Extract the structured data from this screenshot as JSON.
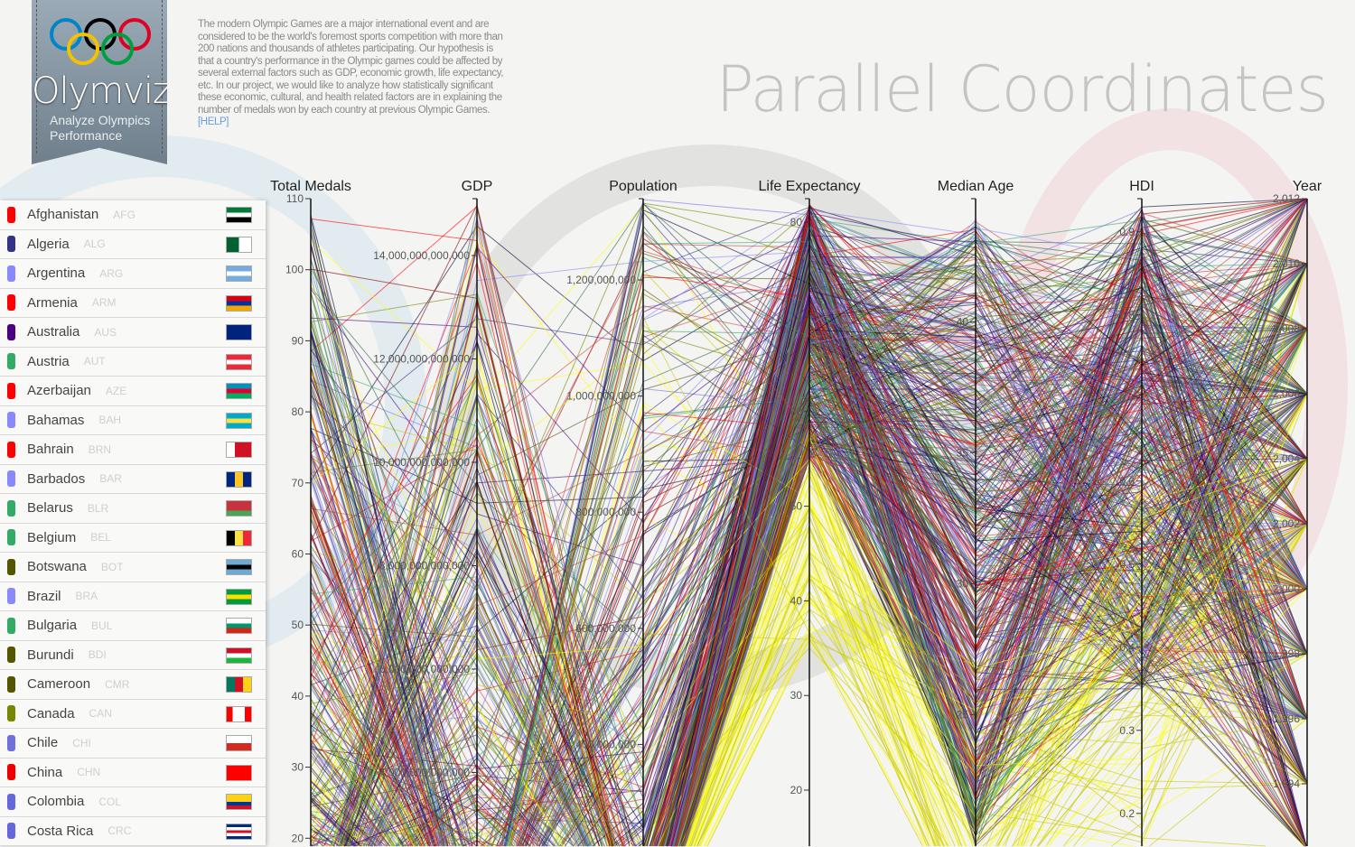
{
  "logo": {
    "name": "Olymviz",
    "tagline_1": "Analyze Olympics",
    "tagline_2": "Performance",
    "ring_colors": [
      "#0085c7",
      "#000000",
      "#df0024",
      "#f4c300",
      "#009f3d"
    ]
  },
  "description": {
    "text": "The modern Olympic Games are a major international event and are considered to be the world's foremost sports competition with more than 200 nations and thousands of athletes participating. Our hypothesis is that a country's performance in the Olympic games could be affected by several external factors such as GDP, economic growth, life expectancy, etc. In our project, we would like to analyze how statistically significant these economic, cultural, and health related factors are in explaining the number of medals won by each country at previous Olympic Games.",
    "help_link": "[HELP]"
  },
  "page_title": "Parallel Coordinates",
  "countries": [
    {
      "name": "Afghanistan",
      "code": "AFG",
      "color": "#ff0000",
      "flag": [
        "#000",
        "#fff",
        "#000",
        "#fff",
        "#000"
      ],
      "flagc": [
        "#007a36",
        "#007a36",
        "#fff",
        "#000",
        "#000"
      ]
    },
    {
      "name": "Algeria",
      "code": "ALG",
      "color": "#333388",
      "flagc": "v:#006233,#fff"
    },
    {
      "name": "Argentina",
      "code": "ARG",
      "color": "#8888ff",
      "flagc": "h:#74acdf,#fff,#74acdf"
    },
    {
      "name": "Armenia",
      "code": "ARM",
      "color": "#ff0000",
      "flagc": "h:#d90012,#0033a0,#f2a800"
    },
    {
      "name": "Australia",
      "code": "AUS",
      "color": "#4b0082",
      "flagc": "h:#00247d,#00247d"
    },
    {
      "name": "Austria",
      "code": "AUT",
      "color": "#33aa66",
      "flagc": "h:#ed2939,#fff,#ed2939"
    },
    {
      "name": "Azerbaijan",
      "code": "AZE",
      "color": "#ff0000",
      "flagc": "h:#0092bc,#e4002b,#00af66"
    },
    {
      "name": "Bahamas",
      "code": "BAH",
      "color": "#8888ff",
      "flagc": "h:#00abc9,#fae042,#00abc9"
    },
    {
      "name": "Bahrain",
      "code": "BRN",
      "color": "#ff0000",
      "flagc": "v:#fff,#ce1126,#ce1126"
    },
    {
      "name": "Barbados",
      "code": "BAR",
      "color": "#8888ff",
      "flagc": "v:#00267f,#ffc726,#00267f"
    },
    {
      "name": "Belarus",
      "code": "BLR",
      "color": "#33aa66",
      "flagc": "h:#c8313e,#c8313e,#4aa657"
    },
    {
      "name": "Belgium",
      "code": "BEL",
      "color": "#33aa66",
      "flagc": "v:#000,#fae042,#ed2939"
    },
    {
      "name": "Botswana",
      "code": "BOT",
      "color": "#555500",
      "flagc": "h:#6da9d2,#000,#6da9d2"
    },
    {
      "name": "Brazil",
      "code": "BRA",
      "color": "#8888ff",
      "flagc": "h:#009c3b,#ffdf00,#009c3b"
    },
    {
      "name": "Bulgaria",
      "code": "BUL",
      "color": "#33aa66",
      "flagc": "h:#fff,#00966e,#d62612"
    },
    {
      "name": "Burundi",
      "code": "BDI",
      "color": "#555500",
      "flagc": "h:#ce1126,#fff,#1eb53a"
    },
    {
      "name": "Cameroon",
      "code": "CMR",
      "color": "#555500",
      "flagc": "v:#007a5e,#ce1126,#fcd116"
    },
    {
      "name": "Canada",
      "code": "CAN",
      "color": "#778800",
      "flagc": "v:#ff0000,#fff,#fff,#ff0000"
    },
    {
      "name": "Chile",
      "code": "CHI",
      "color": "#7070dd",
      "flagc": "h:#fff,#d52b1e"
    },
    {
      "name": "China",
      "code": "CHN",
      "color": "#ee0000",
      "flagc": "h:#ff0000,#ff0000"
    },
    {
      "name": "Colombia",
      "code": "COL",
      "color": "#6666dd",
      "flagc": "h:#fcd116,#fcd116,#003893,#ce1126"
    },
    {
      "name": "Costa Rica",
      "code": "CRC",
      "color": "#6666dd",
      "flagc": "h:#002b7f,#fff,#ce1126,#fff,#002b7f"
    }
  ],
  "chart_data": {
    "type": "parallel-coordinates",
    "axes": [
      {
        "label": "Total Medals",
        "domain": [
          0,
          110
        ],
        "ticks": [
          20,
          30,
          40,
          50,
          60,
          70,
          80,
          90,
          100,
          110
        ],
        "tick_labels": [
          "20",
          "30",
          "40",
          "50",
          "60",
          "70",
          "80",
          "90",
          "100",
          "110"
        ]
      },
      {
        "label": "GDP",
        "domain": [
          0,
          15100000000000
        ],
        "ticks": [
          4000000000000.0,
          6000000000000.0,
          8000000000000.0,
          10000000000000.0,
          12000000000000.0,
          14000000000000.0
        ],
        "tick_labels": [
          "4,000,000,000,000",
          "6,000,000,000,000",
          "8,000,000,000,000",
          "10,000,000,000,000",
          "12,000,000,000,000",
          "14,000,000,000,000"
        ]
      },
      {
        "label": "Population",
        "domain": [
          0,
          1340000000
        ],
        "ticks": [
          400000000.0,
          600000000.0,
          800000000.0,
          1000000000.0,
          1200000000.0
        ],
        "tick_labels": [
          "400,000,000",
          "600,000,000",
          "800,000,000",
          "1,000,000,000",
          "1,200,000,000"
        ]
      },
      {
        "label": "Life Expectancy",
        "domain": [
          13,
          82.5
        ],
        "ticks": [
          20,
          30,
          40,
          50,
          60,
          70,
          80
        ],
        "tick_labels": [
          "20",
          "30",
          "40",
          "50",
          "60",
          "70",
          "80"
        ]
      },
      {
        "label": "Median Age",
        "domain": [
          20,
          44.7
        ],
        "ticks": [
          25,
          30,
          35,
          40
        ],
        "tick_labels": [
          "25",
          "30",
          "35",
          "40"
        ]
      },
      {
        "label": "HDI",
        "domain": [
          0.14,
          0.94
        ],
        "ticks": [
          0.2,
          0.3,
          0.4,
          0.5,
          0.6,
          0.7,
          0.8,
          0.9
        ],
        "tick_labels": [
          "0.2",
          "0.3",
          "0.4",
          "0.5",
          "0.6",
          "0.7",
          "0.8",
          "0.9"
        ]
      },
      {
        "label": "Year",
        "domain": [
          1992,
          2012
        ],
        "ticks": [
          1994,
          1996,
          1998,
          2000,
          2002,
          2004,
          2006,
          2008,
          2010,
          2012
        ],
        "tick_labels": [
          "1,994",
          "1,996",
          "1,998",
          "2,000",
          "2,002",
          "2,004",
          "2,006",
          "2,008",
          "2,010",
          "2,012"
        ]
      }
    ],
    "line_palette": [
      "#ff0000",
      "#333388",
      "#8888ff",
      "#4b0082",
      "#33aa66",
      "#2e6b4a",
      "#555500",
      "#778800",
      "#ffff00",
      "#cccc00",
      "#8b0000",
      "#7070dd",
      "#000033",
      "#cc4444"
    ]
  }
}
